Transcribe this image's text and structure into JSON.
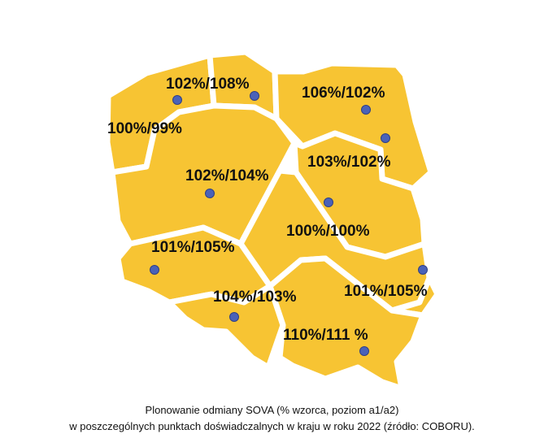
{
  "map": {
    "fill_color": "#F7C433",
    "border_color": "#FFFFFF",
    "marker_color": "#4A62B8",
    "regions": [
      {
        "id": "northwest",
        "label": "100%/99%"
      },
      {
        "id": "north-coast",
        "label": "102%/108%"
      },
      {
        "id": "northeast",
        "label": "106%/102%"
      },
      {
        "id": "east-center",
        "label": "103%/102%"
      },
      {
        "id": "center-west",
        "label": "102%/104%"
      },
      {
        "id": "center",
        "label": "100%/100%"
      },
      {
        "id": "southwest",
        "label": "101%/105%"
      },
      {
        "id": "south-silesia",
        "label": "104%/103%"
      },
      {
        "id": "southeast-east",
        "label": "101%/105%"
      },
      {
        "id": "south-lesser",
        "label": "110%/111 %"
      }
    ]
  },
  "caption": {
    "line1": "Plonowanie odmiany SOVA (% wzorca, poziom a1/a2)",
    "line2": "w poszczególnych punktach doświadczalnych w kraju w roku 2022 (źródło: COBORU)."
  }
}
